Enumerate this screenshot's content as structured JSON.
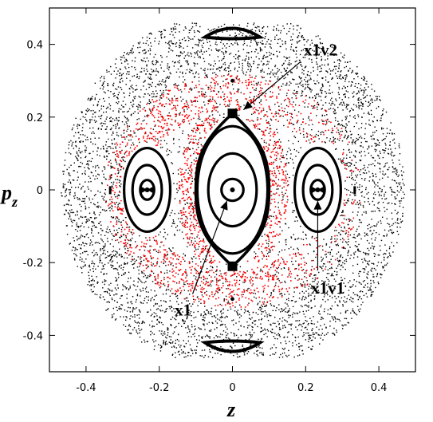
{
  "chart_data": {
    "type": "scatter",
    "title": "",
    "xlabel": "z",
    "ylabel_main": "p",
    "ylabel_sub": "z",
    "xlim": [
      -0.5,
      0.5
    ],
    "ylim": [
      -0.5,
      0.5
    ],
    "xticks": [
      -0.4,
      -0.2,
      0,
      0.2,
      0.4
    ],
    "yticks": [
      -0.4,
      -0.2,
      0,
      0.2,
      0.4
    ],
    "xtick_labels": [
      "-0.4",
      "-0.2",
      "0",
      "0.2",
      "0.4"
    ],
    "ytick_labels": [
      "-0.4",
      "-0.2",
      "0",
      "0.2",
      "0.4"
    ],
    "colors": {
      "chaotic": "#000000",
      "sticky": "#ff0000",
      "orbit": "#000000"
    },
    "series": [
      {
        "kind": "chaotic-sea",
        "color": "#000000",
        "density": 5200
      },
      {
        "kind": "sticky-ring",
        "color": "#ff0000",
        "density": 1700
      }
    ],
    "invariant_curves": [
      {
        "cx": 0,
        "cy": 0,
        "a": 0.03,
        "b": 0.03
      },
      {
        "cx": 0,
        "cy": 0,
        "a": 0.066,
        "b": 0.1
      },
      {
        "cx": 0,
        "cy": 0,
        "a": 0.096,
        "b": 0.175
      },
      {
        "cx": -0.233,
        "cy": 0,
        "a": 0.019,
        "b": 0.027
      },
      {
        "cx": -0.233,
        "cy": 0,
        "a": 0.04,
        "b": 0.068
      },
      {
        "cx": -0.233,
        "cy": 0,
        "a": 0.063,
        "b": 0.115
      },
      {
        "cx": 0.233,
        "cy": 0,
        "a": 0.019,
        "b": 0.027
      },
      {
        "cx": 0.233,
        "cy": 0,
        "a": 0.04,
        "b": 0.068
      },
      {
        "cx": 0.233,
        "cy": 0,
        "a": 0.063,
        "b": 0.115
      }
    ],
    "separatrix": {
      "x_half_width": 0.1,
      "y_tips": [
        0.21,
        -0.21
      ]
    },
    "fixed_points": [
      {
        "z": 0,
        "pz": 0
      },
      {
        "z": -0.233,
        "pz": 0
      },
      {
        "z": 0.233,
        "pz": 0
      },
      {
        "z": 0,
        "pz": 0.21
      },
      {
        "z": 0,
        "pz": -0.21
      }
    ],
    "annotations": [
      {
        "label": "x1v2",
        "tx": 0.195,
        "ty": 0.37,
        "px": 0.03,
        "py": 0.22
      },
      {
        "label": "x1",
        "tx": -0.135,
        "ty": -0.33,
        "px": -0.015,
        "py": -0.03
      },
      {
        "label": "x1v1",
        "tx": 0.215,
        "ty": -0.27,
        "px": 0.233,
        "py": -0.03
      }
    ]
  }
}
